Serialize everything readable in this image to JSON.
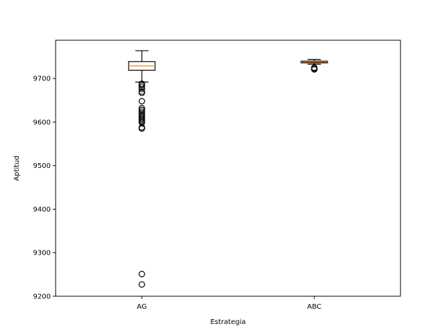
{
  "chart_data": {
    "type": "boxplot",
    "title": "",
    "xlabel": "Estrategia",
    "ylabel": "Aptitud",
    "ylim": [
      9200,
      9788
    ],
    "yticks": [
      9200,
      9300,
      9400,
      9500,
      9600,
      9700
    ],
    "grid": false,
    "legend": "none",
    "colors": {
      "box": "#000000",
      "median": "#ff7f0e",
      "background": "#ffffff"
    },
    "series": [
      {
        "category": "AG",
        "whisker_low": 9692,
        "q1": 9719,
        "median": 9729,
        "q3": 9739,
        "whisker_high": 9764,
        "outliers": [
          9688,
          9685,
          9681,
          9676,
          9670,
          9667,
          9648,
          9632,
          9628,
          9624,
          9620,
          9617,
          9614,
          9611,
          9608,
          9605,
          9602,
          9599,
          9588,
          9585,
          9251,
          9227
        ]
      },
      {
        "category": "ABC",
        "whisker_low": 9733,
        "q1": 9736,
        "median": 9738,
        "q3": 9740,
        "whisker_high": 9744,
        "outliers": [
          9725,
          9723,
          9721
        ]
      }
    ]
  }
}
